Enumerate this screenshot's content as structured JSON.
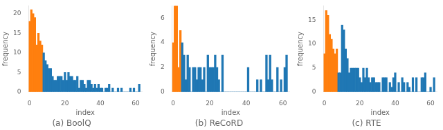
{
  "chart_data": [
    {
      "type": "bar",
      "title": "(a) BoolQ",
      "xlabel": "index",
      "ylabel": "frequency",
      "x": [
        0,
        1,
        2,
        3,
        4,
        5,
        6,
        7,
        8,
        9,
        10,
        11,
        12,
        13,
        14,
        15,
        16,
        17,
        18,
        19,
        20,
        21,
        22,
        23,
        24,
        25,
        26,
        27,
        28,
        29,
        30,
        31,
        32,
        33,
        34,
        35,
        36,
        37,
        38,
        39,
        40,
        41,
        42,
        43,
        44,
        45,
        46,
        47,
        48,
        49,
        50,
        51,
        52,
        53,
        54,
        55,
        56,
        57,
        58,
        59,
        60,
        61,
        62
      ],
      "values": [
        18,
        21,
        20,
        19,
        12,
        15,
        13,
        12,
        10,
        8,
        7,
        6,
        6,
        4,
        3,
        3,
        4,
        4,
        4,
        3,
        5,
        3,
        5,
        4,
        4,
        3,
        3,
        4,
        1,
        3,
        3,
        2,
        1,
        3,
        3,
        2,
        1,
        2,
        1,
        2,
        1,
        1,
        0,
        1,
        1,
        2,
        0,
        1,
        0,
        0,
        1,
        0,
        1,
        0,
        0,
        0,
        0,
        1,
        0,
        1,
        0,
        0,
        2
      ],
      "colors": [
        "#ff7f0e",
        "#ff7f0e",
        "#ff7f0e",
        "#ff7f0e",
        "#ff7f0e",
        "#ff7f0e",
        "#ff7f0e",
        "#ff7f0e",
        "#1f77b4",
        "#1f77b4",
        "#1f77b4",
        "#1f77b4",
        "#1f77b4",
        "#1f77b4",
        "#1f77b4",
        "#1f77b4",
        "#1f77b4",
        "#1f77b4",
        "#1f77b4",
        "#1f77b4",
        "#1f77b4",
        "#1f77b4",
        "#1f77b4",
        "#1f77b4",
        "#1f77b4",
        "#1f77b4",
        "#1f77b4",
        "#1f77b4",
        "#1f77b4",
        "#1f77b4",
        "#1f77b4",
        "#1f77b4",
        "#1f77b4",
        "#1f77b4",
        "#1f77b4",
        "#1f77b4",
        "#1f77b4",
        "#1f77b4",
        "#1f77b4",
        "#1f77b4",
        "#1f77b4",
        "#1f77b4",
        "#1f77b4",
        "#1f77b4",
        "#1f77b4",
        "#1f77b4",
        "#1f77b4",
        "#1f77b4",
        "#1f77b4",
        "#1f77b4",
        "#1f77b4",
        "#1f77b4",
        "#1f77b4",
        "#1f77b4",
        "#1f77b4",
        "#1f77b4",
        "#1f77b4",
        "#1f77b4",
        "#1f77b4",
        "#1f77b4",
        "#1f77b4",
        "#1f77b4",
        "#1f77b4"
      ],
      "xlim": [
        -0.5,
        63.5
      ],
      "xticks": [
        0,
        20,
        40,
        60
      ],
      "ylim": [
        0,
        22
      ],
      "yticks": [
        0,
        5,
        10,
        15,
        20
      ],
      "grid": false
    },
    {
      "type": "bar",
      "title": "(b) ReCoRD",
      "xlabel": "index",
      "ylabel": "frequency",
      "x": [
        0,
        1,
        2,
        3,
        4,
        5,
        6,
        7,
        8,
        9,
        10,
        11,
        12,
        13,
        14,
        15,
        16,
        17,
        18,
        19,
        20,
        21,
        22,
        23,
        24,
        25,
        26,
        27,
        28,
        29,
        30,
        31,
        32,
        33,
        34,
        35,
        36,
        37,
        38,
        39,
        40,
        41,
        42,
        43,
        44,
        45,
        46,
        47,
        48,
        49,
        50,
        51,
        52,
        53,
        54,
        55,
        56,
        57,
        58,
        59,
        60,
        61,
        62
      ],
      "values": [
        4,
        7,
        7,
        2,
        5,
        4,
        3,
        1,
        3,
        2,
        0,
        2,
        2,
        1,
        2,
        2,
        1,
        2,
        0,
        3,
        2,
        2,
        2,
        3,
        2,
        1,
        0,
        3,
        0,
        0,
        0,
        0,
        0,
        0,
        0,
        0,
        0,
        0,
        0,
        0,
        0,
        2,
        0,
        0,
        0,
        0,
        1,
        0,
        1,
        0,
        0,
        3,
        1,
        3,
        1,
        0,
        0,
        2,
        0,
        1,
        0,
        2,
        3
      ],
      "colors": [
        "#ff7f0e",
        "#ff7f0e",
        "#ff7f0e",
        "#ff7f0e",
        "#ff7f0e",
        "#1f77b4",
        "#1f77b4",
        "#1f77b4",
        "#1f77b4",
        "#1f77b4",
        "#1f77b4",
        "#1f77b4",
        "#1f77b4",
        "#1f77b4",
        "#1f77b4",
        "#1f77b4",
        "#1f77b4",
        "#1f77b4",
        "#1f77b4",
        "#1f77b4",
        "#1f77b4",
        "#1f77b4",
        "#1f77b4",
        "#1f77b4",
        "#1f77b4",
        "#1f77b4",
        "#1f77b4",
        "#1f77b4",
        "#1f77b4",
        "#1f77b4",
        "#1f77b4",
        "#1f77b4",
        "#1f77b4",
        "#1f77b4",
        "#1f77b4",
        "#1f77b4",
        "#1f77b4",
        "#1f77b4",
        "#1f77b4",
        "#1f77b4",
        "#1f77b4",
        "#1f77b4",
        "#1f77b4",
        "#1f77b4",
        "#1f77b4",
        "#1f77b4",
        "#1f77b4",
        "#1f77b4",
        "#1f77b4",
        "#1f77b4",
        "#1f77b4",
        "#1f77b4",
        "#1f77b4",
        "#1f77b4",
        "#1f77b4",
        "#1f77b4",
        "#1f77b4",
        "#1f77b4",
        "#1f77b4",
        "#1f77b4",
        "#1f77b4",
        "#1f77b4",
        "#1f77b4"
      ],
      "xlim": [
        -0.5,
        63.5
      ],
      "xticks": [
        0,
        20,
        40,
        60
      ],
      "ylim": [
        0,
        7
      ],
      "yticks": [
        0,
        2,
        4,
        6
      ],
      "grid": false
    },
    {
      "type": "bar",
      "title": "(c) RTE",
      "xlabel": "index",
      "ylabel": "frequency",
      "x": [
        0,
        1,
        2,
        3,
        4,
        5,
        6,
        7,
        8,
        9,
        10,
        11,
        12,
        13,
        14,
        15,
        16,
        17,
        18,
        19,
        20,
        21,
        22,
        23,
        24,
        25,
        26,
        27,
        28,
        29,
        30,
        31,
        32,
        33,
        34,
        35,
        36,
        37,
        38,
        39,
        40,
        41,
        42,
        43,
        44,
        45,
        46,
        47,
        48,
        49,
        50,
        51,
        52,
        53,
        54,
        55,
        56,
        57,
        58,
        59,
        60,
        61,
        62
      ],
      "values": [
        8,
        17,
        16,
        12,
        11,
        9,
        8,
        9,
        4,
        4,
        14,
        13,
        9,
        7,
        4,
        5,
        5,
        5,
        5,
        5,
        3,
        2,
        5,
        3,
        5,
        3,
        2,
        3,
        3,
        2,
        2,
        2,
        0,
        3,
        3,
        3,
        0,
        2,
        1,
        3,
        4,
        0,
        2,
        0,
        3,
        2,
        0,
        2,
        1,
        0,
        3,
        0,
        3,
        0,
        0,
        3,
        3,
        4,
        0,
        0,
        1,
        0,
        3
      ],
      "colors": [
        "#ff7f0e",
        "#ff7f0e",
        "#ff7f0e",
        "#ff7f0e",
        "#ff7f0e",
        "#ff7f0e",
        "#ff7f0e",
        "#ff7f0e",
        "#1f77b4",
        "#1f77b4",
        "#1f77b4",
        "#1f77b4",
        "#1f77b4",
        "#1f77b4",
        "#1f77b4",
        "#1f77b4",
        "#1f77b4",
        "#1f77b4",
        "#1f77b4",
        "#1f77b4",
        "#1f77b4",
        "#1f77b4",
        "#1f77b4",
        "#1f77b4",
        "#1f77b4",
        "#1f77b4",
        "#1f77b4",
        "#1f77b4",
        "#1f77b4",
        "#1f77b4",
        "#1f77b4",
        "#1f77b4",
        "#1f77b4",
        "#1f77b4",
        "#1f77b4",
        "#1f77b4",
        "#1f77b4",
        "#1f77b4",
        "#1f77b4",
        "#1f77b4",
        "#1f77b4",
        "#1f77b4",
        "#1f77b4",
        "#1f77b4",
        "#1f77b4",
        "#1f77b4",
        "#1f77b4",
        "#1f77b4",
        "#1f77b4",
        "#1f77b4",
        "#1f77b4",
        "#1f77b4",
        "#1f77b4",
        "#1f77b4",
        "#1f77b4",
        "#1f77b4",
        "#1f77b4",
        "#1f77b4",
        "#1f77b4",
        "#1f77b4",
        "#1f77b4",
        "#1f77b4",
        "#1f77b4"
      ],
      "xlim": [
        -0.5,
        63.5
      ],
      "xticks": [
        0,
        20,
        40,
        60
      ],
      "ylim": [
        0,
        18
      ],
      "yticks": [
        0,
        5,
        10,
        15
      ],
      "grid": false
    }
  ]
}
